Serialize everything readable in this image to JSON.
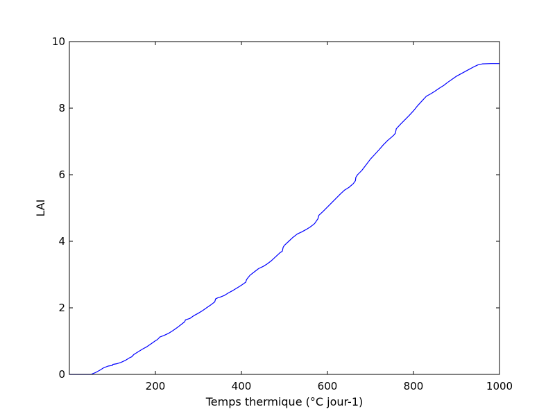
{
  "chart_data": {
    "type": "line",
    "title": "",
    "xlabel": "Temps thermique (°C jour-1)",
    "ylabel": "LAI",
    "xlim": [
      0,
      1000
    ],
    "ylim": [
      0,
      10
    ],
    "xticks": [
      200,
      400,
      600,
      800,
      1000
    ],
    "xtick_labels": [
      "200",
      "400",
      "600",
      "800",
      "1000"
    ],
    "yticks": [
      0,
      2,
      4,
      6,
      8,
      10
    ],
    "ytick_labels": [
      "0",
      "2",
      "4",
      "6",
      "8",
      "10"
    ],
    "grid": false,
    "series": [
      {
        "color": "#0000ff",
        "x": [
          0,
          50,
          60,
          70,
          80,
          90,
          100,
          101,
          110,
          120,
          130,
          140,
          145,
          150,
          160,
          170,
          180,
          190,
          200,
          205,
          210,
          220,
          230,
          240,
          250,
          260,
          268,
          270,
          280,
          290,
          300,
          310,
          320,
          330,
          338,
          340,
          345,
          350,
          360,
          370,
          380,
          390,
          400,
          410,
          412,
          415,
          420,
          430,
          440,
          450,
          460,
          470,
          480,
          490,
          495,
          497,
          500,
          510,
          520,
          530,
          540,
          550,
          560,
          570,
          578,
          580,
          590,
          600,
          610,
          620,
          630,
          640,
          650,
          660,
          665,
          666,
          670,
          680,
          690,
          700,
          710,
          720,
          730,
          740,
          750,
          755,
          758,
          760,
          770,
          780,
          790,
          800,
          810,
          820,
          830,
          840,
          850,
          860,
          870,
          880,
          890,
          900,
          910,
          920,
          930,
          940,
          950,
          960,
          980,
          1000
        ],
        "y": [
          0,
          0,
          0.05,
          0.12,
          0.2,
          0.25,
          0.27,
          0.3,
          0.32,
          0.36,
          0.42,
          0.5,
          0.53,
          0.6,
          0.68,
          0.76,
          0.83,
          0.92,
          1.01,
          1.05,
          1.12,
          1.17,
          1.23,
          1.31,
          1.4,
          1.5,
          1.58,
          1.64,
          1.68,
          1.77,
          1.84,
          1.92,
          2.01,
          2.1,
          2.18,
          2.27,
          2.3,
          2.32,
          2.37,
          2.45,
          2.52,
          2.6,
          2.68,
          2.77,
          2.85,
          2.9,
          2.98,
          3.08,
          3.18,
          3.24,
          3.32,
          3.42,
          3.54,
          3.66,
          3.7,
          3.82,
          3.88,
          4.0,
          4.12,
          4.22,
          4.28,
          4.35,
          4.43,
          4.53,
          4.68,
          4.78,
          4.9,
          5.03,
          5.16,
          5.29,
          5.42,
          5.54,
          5.62,
          5.73,
          5.82,
          5.92,
          6.0,
          6.13,
          6.3,
          6.47,
          6.61,
          6.75,
          6.9,
          7.03,
          7.14,
          7.2,
          7.25,
          7.38,
          7.52,
          7.65,
          7.78,
          7.92,
          8.08,
          8.22,
          8.36,
          8.43,
          8.51,
          8.6,
          8.68,
          8.78,
          8.87,
          8.96,
          9.03,
          9.1,
          9.17,
          9.24,
          9.3,
          9.33,
          9.34,
          9.34
        ]
      }
    ]
  }
}
